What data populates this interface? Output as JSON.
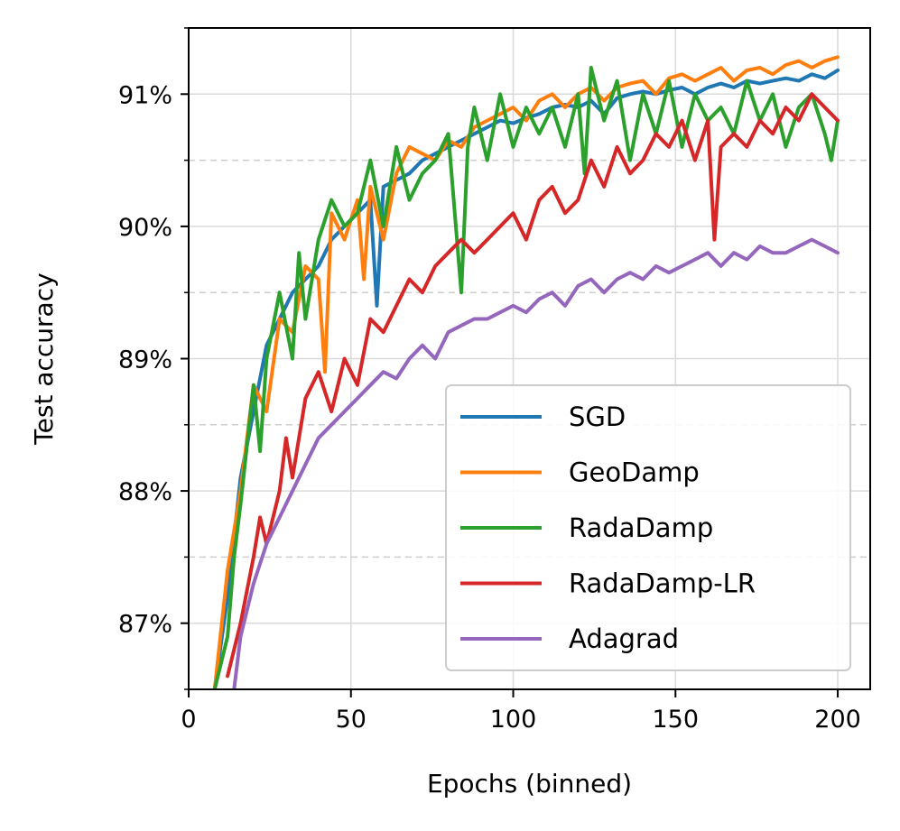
{
  "chart_data": {
    "type": "line",
    "title": "",
    "xlabel": "Epochs (binned)",
    "ylabel": "Test accuracy",
    "xlim": [
      0,
      210
    ],
    "ylim": [
      86.5,
      91.5
    ],
    "x_ticks": [
      0,
      50,
      100,
      150,
      200
    ],
    "x_tick_labels": [
      "0",
      "50",
      "100",
      "150",
      "200"
    ],
    "y_ticks": [
      87,
      88,
      89,
      90,
      91
    ],
    "y_tick_labels": [
      "87%",
      "88%",
      "89%",
      "90%",
      "91%"
    ],
    "y_minor_ticks": [
      86.5,
      87.5,
      88.5,
      89.5,
      90.5,
      91.5
    ],
    "grid": true,
    "legend_position": "bottom-right",
    "series": [
      {
        "name": "SGD",
        "color": "#1f77b4",
        "x": [
          8,
          12,
          16,
          20,
          24,
          28,
          32,
          36,
          40,
          44,
          48,
          52,
          56,
          58,
          60,
          64,
          68,
          72,
          76,
          80,
          84,
          88,
          92,
          96,
          100,
          104,
          108,
          112,
          116,
          120,
          124,
          128,
          132,
          136,
          140,
          144,
          148,
          152,
          156,
          160,
          164,
          168,
          172,
          176,
          180,
          184,
          188,
          192,
          196,
          200
        ],
        "values": [
          86.5,
          87.2,
          88.1,
          88.6,
          89.1,
          89.3,
          89.5,
          89.6,
          89.7,
          89.9,
          90.0,
          90.1,
          90.2,
          89.4,
          90.3,
          90.35,
          90.4,
          90.5,
          90.55,
          90.6,
          90.65,
          90.7,
          90.75,
          90.8,
          90.78,
          90.82,
          90.85,
          90.9,
          90.92,
          90.9,
          90.95,
          90.85,
          90.97,
          91.0,
          91.02,
          91.0,
          91.03,
          91.05,
          91.0,
          91.05,
          91.08,
          91.05,
          91.1,
          91.08,
          91.1,
          91.12,
          91.1,
          91.15,
          91.12,
          91.18
        ]
      },
      {
        "name": "GeoDamp",
        "color": "#ff7f0e",
        "x": [
          8,
          12,
          16,
          20,
          24,
          28,
          32,
          36,
          40,
          42,
          44,
          48,
          52,
          54,
          56,
          60,
          64,
          68,
          72,
          76,
          80,
          84,
          88,
          92,
          96,
          100,
          104,
          108,
          112,
          116,
          120,
          124,
          128,
          132,
          136,
          140,
          144,
          148,
          152,
          156,
          160,
          164,
          168,
          172,
          176,
          180,
          184,
          188,
          192,
          196,
          200
        ],
        "values": [
          86.5,
          87.4,
          88.0,
          88.8,
          88.6,
          89.3,
          89.2,
          89.7,
          89.6,
          88.9,
          90.1,
          89.9,
          90.2,
          89.6,
          90.3,
          89.9,
          90.4,
          90.6,
          90.55,
          90.5,
          90.65,
          90.6,
          90.75,
          90.8,
          90.85,
          90.9,
          90.8,
          90.95,
          91.0,
          90.9,
          91.0,
          91.05,
          90.95,
          91.05,
          91.08,
          91.1,
          91.0,
          91.12,
          91.15,
          91.1,
          91.15,
          91.2,
          91.1,
          91.18,
          91.2,
          91.15,
          91.22,
          91.25,
          91.2,
          91.25,
          91.28
        ]
      },
      {
        "name": "RadaDamp",
        "color": "#2ca02c",
        "x": [
          8,
          12,
          14,
          16,
          20,
          22,
          24,
          28,
          32,
          34,
          36,
          40,
          44,
          48,
          52,
          56,
          60,
          64,
          68,
          72,
          76,
          80,
          84,
          86,
          88,
          92,
          96,
          100,
          104,
          108,
          112,
          116,
          120,
          122,
          124,
          128,
          132,
          136,
          140,
          144,
          148,
          152,
          156,
          160,
          164,
          168,
          172,
          176,
          180,
          184,
          188,
          192,
          196,
          198,
          200
        ],
        "values": [
          86.5,
          86.9,
          87.5,
          87.9,
          88.8,
          88.3,
          89.0,
          89.5,
          89.0,
          89.8,
          89.3,
          89.9,
          90.2,
          90.0,
          90.1,
          90.5,
          90.0,
          90.6,
          90.2,
          90.4,
          90.5,
          90.7,
          89.5,
          90.6,
          90.9,
          90.5,
          91.0,
          90.6,
          90.9,
          90.7,
          90.9,
          90.6,
          91.0,
          90.4,
          91.2,
          90.8,
          91.1,
          90.5,
          91.0,
          90.7,
          91.1,
          90.6,
          91.0,
          90.8,
          90.9,
          90.7,
          91.1,
          90.8,
          91.0,
          90.6,
          90.9,
          91.0,
          90.7,
          90.5,
          90.8
        ]
      },
      {
        "name": "RadaDamp-LR",
        "color": "#d62728",
        "x": [
          12,
          14,
          16,
          20,
          22,
          24,
          28,
          30,
          32,
          36,
          40,
          44,
          48,
          52,
          56,
          60,
          64,
          68,
          72,
          76,
          80,
          84,
          88,
          92,
          96,
          100,
          104,
          108,
          112,
          116,
          120,
          124,
          128,
          132,
          136,
          140,
          144,
          148,
          152,
          156,
          160,
          162,
          164,
          168,
          172,
          176,
          180,
          184,
          188,
          192,
          196,
          200
        ],
        "values": [
          86.6,
          86.8,
          87.0,
          87.5,
          87.8,
          87.6,
          88.0,
          88.4,
          88.1,
          88.7,
          88.9,
          88.6,
          89.0,
          88.8,
          89.3,
          89.2,
          89.4,
          89.6,
          89.5,
          89.7,
          89.8,
          89.9,
          89.8,
          89.9,
          90.0,
          90.1,
          89.9,
          90.2,
          90.3,
          90.1,
          90.2,
          90.5,
          90.3,
          90.6,
          90.4,
          90.5,
          90.7,
          90.6,
          90.8,
          90.5,
          90.8,
          89.9,
          90.6,
          90.7,
          90.6,
          90.8,
          90.7,
          90.9,
          90.8,
          91.0,
          90.9,
          90.8
        ]
      },
      {
        "name": "Adagrad",
        "color": "#9467bd",
        "x": [
          14,
          16,
          20,
          24,
          28,
          32,
          36,
          40,
          44,
          48,
          52,
          56,
          60,
          64,
          68,
          72,
          76,
          80,
          84,
          88,
          92,
          96,
          100,
          104,
          108,
          112,
          116,
          120,
          124,
          128,
          132,
          136,
          140,
          144,
          148,
          152,
          156,
          160,
          164,
          168,
          172,
          176,
          180,
          184,
          188,
          192,
          196,
          200
        ],
        "values": [
          86.5,
          86.9,
          87.3,
          87.6,
          87.8,
          88.0,
          88.2,
          88.4,
          88.5,
          88.6,
          88.7,
          88.8,
          88.9,
          88.85,
          89.0,
          89.1,
          89.0,
          89.2,
          89.25,
          89.3,
          89.3,
          89.35,
          89.4,
          89.35,
          89.45,
          89.5,
          89.4,
          89.55,
          89.6,
          89.5,
          89.6,
          89.65,
          89.6,
          89.7,
          89.65,
          89.7,
          89.75,
          89.8,
          89.7,
          89.8,
          89.75,
          89.85,
          89.8,
          89.8,
          89.85,
          89.9,
          89.85,
          89.8
        ]
      }
    ]
  }
}
